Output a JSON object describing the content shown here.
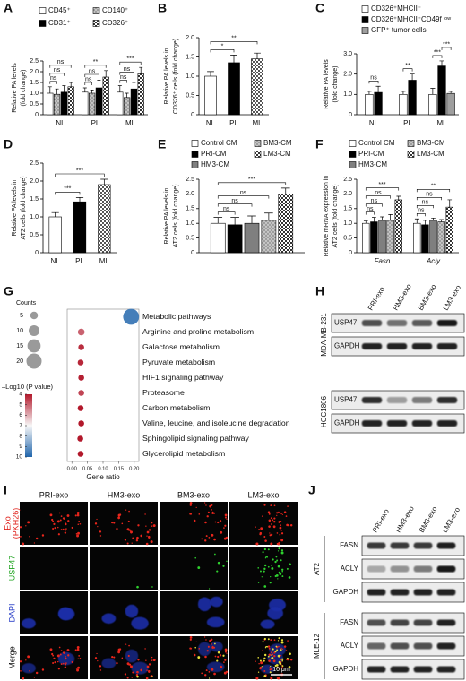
{
  "chart_data": [
    {
      "type": "grouped_bar",
      "label": "A",
      "ylabel": [
        "Relative PA levels",
        "(fold change)"
      ],
      "categories": [
        "NL",
        "PL",
        "ML"
      ],
      "series": [
        {
          "name": "CD45⁺",
          "color": "#ffffff",
          "pattern": null,
          "values": [
            1.0,
            1.05,
            1.05
          ],
          "errors": [
            0.3,
            0.2,
            0.3
          ]
        },
        {
          "name": "CD140⁺",
          "color": "#9e9e9e",
          "pattern": "dots",
          "values": [
            0.95,
            1.0,
            0.8
          ],
          "errors": [
            0.25,
            0.15,
            0.2
          ]
        },
        {
          "name": "CD31⁺",
          "color": "#000000",
          "pattern": null,
          "values": [
            1.05,
            1.25,
            1.2
          ],
          "errors": [
            0.3,
            0.35,
            0.3
          ]
        },
        {
          "name": "CD326⁺",
          "color": "#333333",
          "pattern": "checker",
          "values": [
            1.3,
            1.75,
            1.9
          ],
          "errors": [
            0.2,
            0.3,
            0.3
          ]
        }
      ],
      "ylim": [
        0,
        2.5
      ],
      "yticks": [
        0,
        0.5,
        {
          "value": 1,
          "label": "1.0"
        },
        1.5,
        {
          "value": 2,
          "label": "2.0"
        },
        2.5
      ],
      "significance": [
        [
          "ns",
          "ns",
          "ns"
        ],
        [
          "ns",
          "ns",
          "**"
        ],
        [
          "ns",
          "ns",
          "***"
        ]
      ],
      "brackets": "nested"
    },
    {
      "type": "bar",
      "label": "B",
      "ylabel": [
        "Relative PA levels in",
        "CD326⁺ cells (fold change)"
      ],
      "categories": [
        "NL",
        "PL",
        "ML"
      ],
      "values": [
        1.0,
        1.35,
        1.45
      ],
      "errors": [
        0.12,
        0.2,
        0.15
      ],
      "colors": [
        "#ffffff",
        "#000000",
        "#555555"
      ],
      "patterns": [
        null,
        null,
        "checker"
      ],
      "ylim": [
        0,
        2
      ],
      "yticks": [
        0,
        0.5,
        {
          "value": 1,
          "label": "1.0"
        },
        1.5,
        {
          "value": 2,
          "label": "2.0"
        }
      ],
      "significance": [
        "*",
        "**"
      ],
      "brackets": "nested"
    },
    {
      "type": "grouped_bar",
      "label": "C",
      "ylabel": [
        "Relative PA levels",
        "(fold change)"
      ],
      "categories": [
        "NL",
        "PL",
        "ML"
      ],
      "series": [
        {
          "name": "CD326⁺MHCII⁻",
          "color": "#ffffff",
          "pattern": null,
          "values": [
            1.0,
            1.0,
            1.0
          ],
          "errors": [
            0.15,
            0.15,
            0.3
          ]
        },
        {
          "name": "CD326⁺MHCII⁺CD49f ˡᵒʷ",
          "color": "#000000",
          "pattern": null,
          "values": [
            1.1,
            1.7,
            2.4
          ],
          "errors": [
            0.3,
            0.3,
            0.25
          ]
        },
        {
          "name": "GFP⁺ tumor cells",
          "color": "#9e9e9e",
          "pattern": null,
          "values": [
            null,
            null,
            1.05
          ],
          "errors": [
            null,
            null,
            0.1
          ]
        }
      ],
      "ylim": [
        0,
        3
      ],
      "yticks": [
        0,
        {
          "value": 1,
          "label": "1.0"
        },
        {
          "value": 2,
          "label": "2.0"
        },
        {
          "value": 3,
          "label": "3.0"
        }
      ],
      "significance": [
        [
          "ns"
        ],
        [
          "**"
        ],
        [
          "***",
          "***"
        ]
      ],
      "brackets": "adjacent"
    },
    {
      "type": "bar",
      "label": "D",
      "ylabel": [
        "Relative PA levels in",
        "AT2 cells (fold change)"
      ],
      "categories": [
        "NL",
        "PL",
        "ML"
      ],
      "values": [
        1.0,
        1.42,
        1.9
      ],
      "errors": [
        0.12,
        0.12,
        0.15
      ],
      "colors": [
        "#ffffff",
        "#000000",
        "#555555"
      ],
      "patterns": [
        null,
        null,
        "checker"
      ],
      "ylim": [
        0,
        2.5
      ],
      "yticks": [
        0,
        0.5,
        {
          "value": 1,
          "label": "1.0"
        },
        1.5,
        {
          "value": 2,
          "label": "2.0"
        },
        2.5
      ],
      "significance": [
        "***",
        "***"
      ],
      "brackets": "nested"
    },
    {
      "type": "grouped_bar",
      "label": "E",
      "ylabel": [
        "Relative PA levels in",
        "AT2 cells (fold change)"
      ],
      "categories": [
        null
      ],
      "series": [
        {
          "name": "Control CM",
          "color": "#ffffff",
          "pattern": null,
          "values": [
            1.0
          ],
          "errors": [
            0.2
          ]
        },
        {
          "name": "PRI-CM",
          "color": "#000000",
          "pattern": null,
          "values": [
            0.95
          ],
          "errors": [
            0.25
          ]
        },
        {
          "name": "HM3-CM",
          "color": "#7f7f7f",
          "pattern": null,
          "values": [
            1.0
          ],
          "errors": [
            0.25
          ]
        },
        {
          "name": "BM3-CM",
          "color": "#9e9e9e",
          "pattern": "dots",
          "values": [
            1.1
          ],
          "errors": [
            0.25
          ]
        },
        {
          "name": "LM3-CM",
          "color": "#333333",
          "pattern": "checker",
          "values": [
            2.0
          ],
          "errors": [
            0.2
          ]
        }
      ],
      "ylim": [
        0,
        2.5
      ],
      "yticks": [
        0,
        0.5,
        {
          "value": 1,
          "label": "1.0"
        },
        1.5,
        {
          "value": 2,
          "label": "2.0"
        },
        2.5
      ],
      "significance": [
        [
          "ns",
          "ns",
          "ns",
          "***"
        ]
      ],
      "brackets": "nested"
    },
    {
      "type": "grouped_bar",
      "label": "F",
      "ylabel": [
        "Relative mRNA expression in",
        "AT2 cells (fold change)"
      ],
      "categories": [
        "Fasn",
        "Acly"
      ],
      "category_style": "italic",
      "series": [
        {
          "name": "Control CM",
          "color": "#ffffff",
          "pattern": null,
          "values": [
            1.0,
            1.0
          ],
          "errors": [
            0.08,
            0.15
          ]
        },
        {
          "name": "PRI-CM",
          "color": "#000000",
          "pattern": null,
          "values": [
            1.05,
            0.95
          ],
          "errors": [
            0.15,
            0.15
          ]
        },
        {
          "name": "HM3-CM",
          "color": "#7f7f7f",
          "pattern": null,
          "values": [
            1.1,
            1.1
          ],
          "errors": [
            0.12,
            0.08
          ]
        },
        {
          "name": "BM3-CM",
          "color": "#9e9e9e",
          "pattern": "dots",
          "values": [
            1.1,
            1.05
          ],
          "errors": [
            0.2,
            0.08
          ]
        },
        {
          "name": "LM3-CM",
          "color": "#333333",
          "pattern": "checker",
          "values": [
            1.8,
            1.55
          ],
          "errors": [
            0.12,
            0.25
          ]
        }
      ],
      "ylim": [
        0,
        2.5
      ],
      "yticks": [
        0,
        0.5,
        {
          "value": 1,
          "label": "1.0"
        },
        1.5,
        {
          "value": 2,
          "label": "2.0"
        },
        2.5
      ],
      "significance": [
        [
          "ns",
          "ns",
          "ns",
          "***"
        ],
        [
          "ns",
          "ns",
          "ns",
          "**"
        ]
      ],
      "brackets": "nested"
    },
    {
      "type": "bubble",
      "label": "G",
      "xlabel": "Gene ratio",
      "size_title": "Counts",
      "color_title": "–Log10 (P value)",
      "categories": [
        "Metabolic pathways",
        "Arginine and proline metabolism",
        "Galactose metabolism",
        "Pyruvate metabolism",
        "HIF1 signaling pathway",
        "Proteasome",
        "Carbon metabolism",
        "Valine, leucine, and isoleucine degradation",
        "Sphingolipid signaling pathway",
        "Glycerolipid metabolism"
      ],
      "x": [
        0.19,
        0.03,
        0.03,
        0.028,
        0.03,
        0.03,
        0.028,
        0.03,
        0.027,
        0.028
      ],
      "counts": [
        22,
        4,
        3,
        3,
        3,
        3,
        3,
        3,
        3,
        3
      ],
      "log_p": [
        9.5,
        5.0,
        4.3,
        4.2,
        4.1,
        4.6,
        4.0,
        4.0,
        4.0,
        4.0
      ],
      "xlim": [
        -0.015,
        0.215
      ],
      "xticks": [
        {
          "value": 0,
          "label": "0.00"
        },
        0.05,
        {
          "value": 0.1,
          "label": "0.10"
        },
        0.15,
        {
          "value": 0.2,
          "label": "0.20"
        }
      ],
      "size_ticks": [
        5,
        10,
        15,
        20
      ],
      "clim": [
        4,
        10
      ],
      "color_ticks": [
        4,
        5,
        6,
        7,
        8,
        9,
        10
      ]
    }
  ],
  "blot_h": {
    "label": "H",
    "columns": [
      "PRI-exo",
      "HM3-exo",
      "BM3-exo",
      "LM3-exo"
    ],
    "groups": [
      {
        "name": "MDA-MB-231",
        "rows": [
          "USP47",
          "GAPDH"
        ]
      },
      {
        "name": "HCC1806",
        "rows": [
          "USP47",
          "GAPDH"
        ]
      }
    ]
  },
  "images_i": {
    "label": "I",
    "columns": [
      "PRI-exo",
      "HM3-exo",
      "BM3-exo",
      "LM3-exo"
    ],
    "rows": [
      {
        "lines": [
          "Exo",
          "(PKH26)"
        ],
        "color": "#e0201a"
      },
      {
        "lines": [
          "USP47"
        ],
        "color": "#1fa31f"
      },
      {
        "lines": [
          "DAPI"
        ],
        "color": "#2a3fc7"
      },
      {
        "lines": [
          "Merge"
        ],
        "color": "#111111"
      }
    ],
    "scale_bar": "10 μm"
  },
  "blot_j": {
    "label": "J",
    "columns": [
      "PRI-exo",
      "HM3-exo",
      "BM3-exo",
      "LM3-exo"
    ],
    "groups": [
      {
        "name": "AT2",
        "rows": [
          "FASN",
          "ACLY",
          "GAPDH"
        ]
      },
      {
        "name": "MLE-12",
        "rows": [
          "FASN",
          "ACLY",
          "GAPDH"
        ]
      }
    ]
  }
}
